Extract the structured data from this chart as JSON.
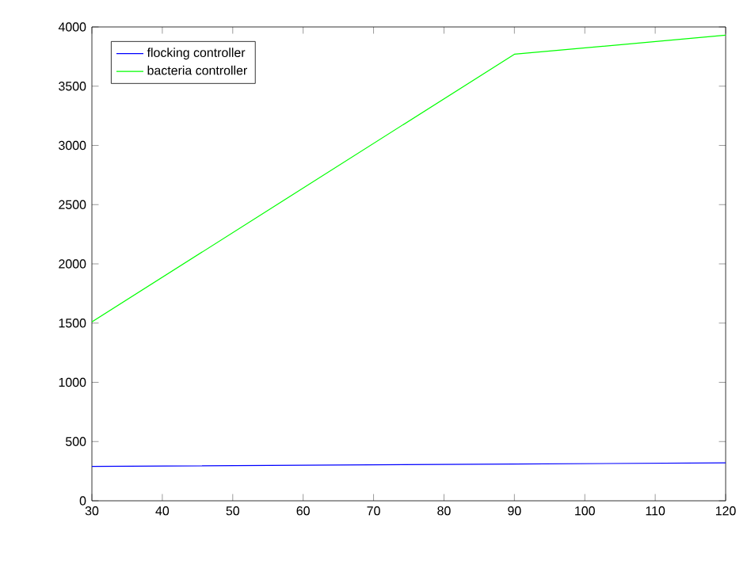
{
  "chart_data": {
    "type": "line",
    "series": [
      {
        "name": "flocking controller",
        "color": "#0000ff",
        "x": [
          30,
          90,
          120
        ],
        "values": [
          290,
          310,
          320
        ]
      },
      {
        "name": "bacteria controller",
        "color": "#00ff00",
        "x": [
          30,
          90,
          120
        ],
        "values": [
          1510,
          3770,
          3930
        ]
      }
    ],
    "xlim": [
      30,
      120
    ],
    "ylim": [
      0,
      4000
    ],
    "xticks": [
      30,
      40,
      50,
      60,
      70,
      80,
      90,
      100,
      110,
      120
    ],
    "yticks": [
      0,
      500,
      1000,
      1500,
      2000,
      2500,
      3000,
      3500,
      4000
    ],
    "legend": "top left",
    "grid": false,
    "marker": "none",
    "line_style": "solid"
  }
}
